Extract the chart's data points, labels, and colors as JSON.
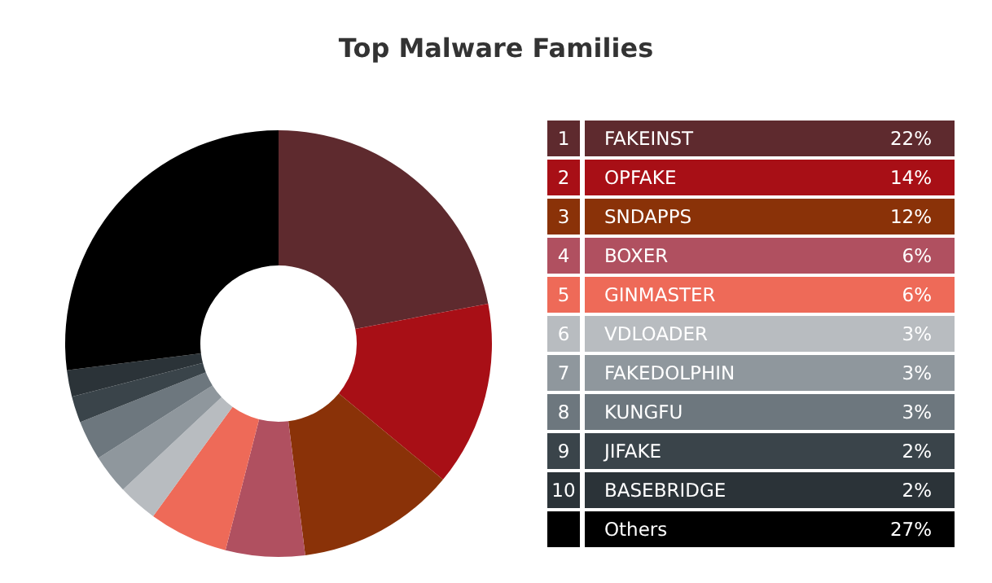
{
  "chart_data": {
    "type": "donut",
    "title": "Top Malware Families",
    "categories": [
      "FAKEINST",
      "OPFAKE",
      "SNDAPPS",
      "BOXER",
      "GINMASTER",
      "VDLOADER",
      "FAKEDOLPHIN",
      "KUNGFU",
      "JIFAKE",
      "BASEBRIDGE",
      "Others"
    ],
    "values": [
      22,
      14,
      12,
      6,
      6,
      3,
      3,
      3,
      2,
      2,
      27
    ],
    "colors": [
      "#5e2a2e",
      "#a80f16",
      "#8a3208",
      "#b05060",
      "#ee6a58",
      "#b8bcc0",
      "#8f979d",
      "#6d777e",
      "#3a444a",
      "#2b3338",
      "#000000"
    ],
    "value_labels": [
      "22%",
      "14%",
      "12%",
      "6%",
      "6%",
      "3%",
      "3%",
      "3%",
      "2%",
      "2%",
      "27%"
    ],
    "annotations": [
      "1",
      "2",
      "3",
      "4",
      "5",
      "6",
      "7",
      "8",
      "9",
      "10"
    ],
    "legend": "right"
  }
}
